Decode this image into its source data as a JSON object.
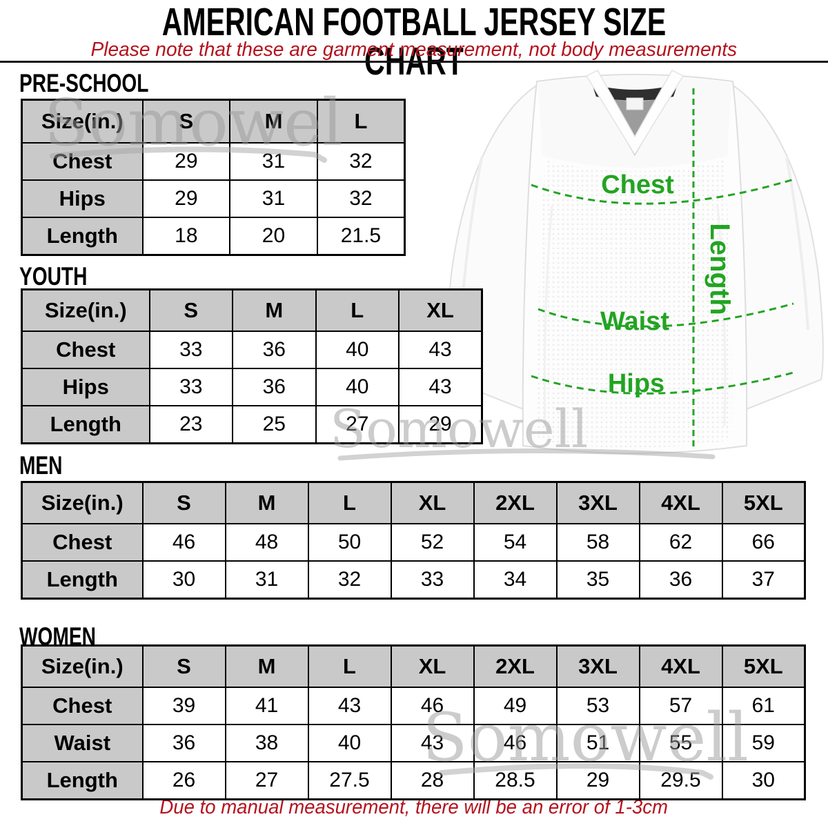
{
  "title": "AMERICAN FOOTBALL JERSEY SIZE CHART",
  "subtitle": "Please note that these are garment measurement, not body measurements",
  "footer_note": "Due to manual measurement, there will be an error of 1-3cm",
  "watermark": {
    "text": "Somowell"
  },
  "colors": {
    "accent_red": "#b5121d",
    "table_header_bg": "#c9c9c9",
    "measure_green": "#22a422",
    "watermark_gray": "#a0a0a0",
    "border_black": "#000000"
  },
  "jersey_diagram": {
    "labels": {
      "chest": "Chest",
      "waist": "Waist",
      "hips": "Hips",
      "length": "Length"
    }
  },
  "sections": [
    {
      "id": "preschool",
      "heading": "PRE-SCHOOL",
      "columns": [
        "Size(in.)",
        "S",
        "M",
        "L"
      ],
      "rows": [
        {
          "label": "Chest",
          "values": [
            "29",
            "31",
            "32"
          ]
        },
        {
          "label": "Hips",
          "values": [
            "29",
            "31",
            "32"
          ]
        },
        {
          "label": "Length",
          "values": [
            "18",
            "20",
            "21.5"
          ]
        }
      ]
    },
    {
      "id": "youth",
      "heading": "YOUTH",
      "columns": [
        "Size(in.)",
        "S",
        "M",
        "L",
        "XL"
      ],
      "rows": [
        {
          "label": "Chest",
          "values": [
            "33",
            "36",
            "40",
            "43"
          ]
        },
        {
          "label": "Hips",
          "values": [
            "33",
            "36",
            "40",
            "43"
          ]
        },
        {
          "label": "Length",
          "values": [
            "23",
            "25",
            "27",
            "29"
          ]
        }
      ]
    },
    {
      "id": "men",
      "heading": "MEN",
      "columns": [
        "Size(in.)",
        "S",
        "M",
        "L",
        "XL",
        "2XL",
        "3XL",
        "4XL",
        "5XL"
      ],
      "rows": [
        {
          "label": "Chest",
          "values": [
            "46",
            "48",
            "50",
            "52",
            "54",
            "58",
            "62",
            "66"
          ]
        },
        {
          "label": "Length",
          "values": [
            "30",
            "31",
            "32",
            "33",
            "34",
            "35",
            "36",
            "37"
          ]
        }
      ]
    },
    {
      "id": "women",
      "heading": "WOMEN",
      "columns": [
        "Size(in.)",
        "S",
        "M",
        "L",
        "XL",
        "2XL",
        "3XL",
        "4XL",
        "5XL"
      ],
      "rows": [
        {
          "label": "Chest",
          "values": [
            "39",
            "41",
            "43",
            "46",
            "49",
            "53",
            "57",
            "61"
          ]
        },
        {
          "label": "Waist",
          "values": [
            "36",
            "38",
            "40",
            "43",
            "46",
            "51",
            "55",
            "59"
          ]
        },
        {
          "label": "Length",
          "values": [
            "26",
            "27",
            "27.5",
            "28",
            "28.5",
            "29",
            "29.5",
            "30"
          ]
        }
      ]
    }
  ],
  "chart_data": [
    {
      "type": "table",
      "title": "PRE-SCHOOL",
      "unit": "in",
      "columns": [
        "Size(in.)",
        "S",
        "M",
        "L"
      ],
      "rows": [
        [
          "Chest",
          29,
          31,
          32
        ],
        [
          "Hips",
          29,
          31,
          32
        ],
        [
          "Length",
          18,
          20,
          21.5
        ]
      ]
    },
    {
      "type": "table",
      "title": "YOUTH",
      "unit": "in",
      "columns": [
        "Size(in.)",
        "S",
        "M",
        "L",
        "XL"
      ],
      "rows": [
        [
          "Chest",
          33,
          36,
          40,
          43
        ],
        [
          "Hips",
          33,
          36,
          40,
          43
        ],
        [
          "Length",
          23,
          25,
          27,
          29
        ]
      ]
    },
    {
      "type": "table",
      "title": "MEN",
      "unit": "in",
      "columns": [
        "Size(in.)",
        "S",
        "M",
        "L",
        "XL",
        "2XL",
        "3XL",
        "4XL",
        "5XL"
      ],
      "rows": [
        [
          "Chest",
          46,
          48,
          50,
          52,
          54,
          58,
          62,
          66
        ],
        [
          "Length",
          30,
          31,
          32,
          33,
          34,
          35,
          36,
          37
        ]
      ]
    },
    {
      "type": "table",
      "title": "WOMEN",
      "unit": "in",
      "columns": [
        "Size(in.)",
        "S",
        "M",
        "L",
        "XL",
        "2XL",
        "3XL",
        "4XL",
        "5XL"
      ],
      "rows": [
        [
          "Chest",
          39,
          41,
          43,
          46,
          49,
          53,
          57,
          61
        ],
        [
          "Waist",
          36,
          38,
          40,
          43,
          46,
          51,
          55,
          59
        ],
        [
          "Length",
          26,
          27,
          27.5,
          28,
          28.5,
          29,
          29.5,
          30
        ]
      ]
    }
  ]
}
